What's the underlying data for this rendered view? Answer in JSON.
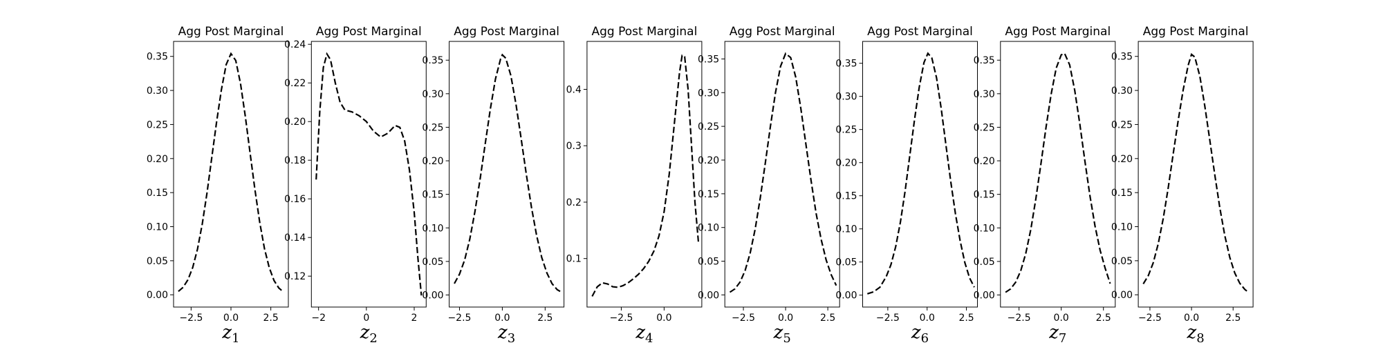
{
  "chart_data": [
    {
      "type": "line",
      "title": "Agg Post Marginal",
      "xlabel": "z",
      "xlabel_sub": "1",
      "xlim": [
        -3.6,
        3.6
      ],
      "ylim": [
        -0.018,
        0.372
      ],
      "xticks": [
        -2.5,
        0.0,
        2.5
      ],
      "xtick_labels": [
        "−2.5",
        "0.0",
        "2.5"
      ],
      "yticks": [
        0.0,
        0.05,
        0.1,
        0.15,
        0.2,
        0.25,
        0.3,
        0.35
      ],
      "ytick_labels": [
        "0.00",
        "0.05",
        "0.10",
        "0.15",
        "0.20",
        "0.25",
        "0.30",
        "0.35"
      ],
      "series": [
        {
          "x": [
            -3.3,
            -3.0,
            -2.7,
            -2.4,
            -2.1,
            -1.8,
            -1.5,
            -1.2,
            -0.9,
            -0.6,
            -0.3,
            0.0,
            0.3,
            0.6,
            0.9,
            1.2,
            1.5,
            1.8,
            2.1,
            2.4,
            2.7,
            3.0,
            3.3
          ],
          "y": [
            0.005,
            0.011,
            0.022,
            0.04,
            0.067,
            0.104,
            0.15,
            0.202,
            0.254,
            0.301,
            0.338,
            0.354,
            0.344,
            0.31,
            0.262,
            0.208,
            0.155,
            0.107,
            0.068,
            0.04,
            0.021,
            0.01,
            0.004
          ]
        }
      ]
    },
    {
      "type": "line",
      "title": "Agg Post Marginal",
      "xlabel": "z",
      "xlabel_sub": "2",
      "xlim": [
        -2.3,
        2.5
      ],
      "ylim": [
        0.104,
        0.2415
      ],
      "xticks": [
        -2,
        0,
        2
      ],
      "xtick_labels": [
        "−2",
        "0",
        "2"
      ],
      "yticks": [
        0.12,
        0.14,
        0.16,
        0.18,
        0.2,
        0.22,
        0.24
      ],
      "ytick_labels": [
        "0.12",
        "0.14",
        "0.16",
        "0.18",
        "0.20",
        "0.22",
        "0.24"
      ],
      "series": [
        {
          "x": [
            -2.1,
            -1.95,
            -1.8,
            -1.65,
            -1.5,
            -1.3,
            -1.1,
            -0.9,
            -0.6,
            -0.3,
            0.0,
            0.3,
            0.6,
            0.9,
            1.2,
            1.4,
            1.6,
            1.8,
            2.0,
            2.15,
            2.3
          ],
          "y": [
            0.17,
            0.205,
            0.228,
            0.235,
            0.232,
            0.22,
            0.21,
            0.206,
            0.205,
            0.203,
            0.2,
            0.195,
            0.192,
            0.194,
            0.198,
            0.197,
            0.19,
            0.175,
            0.153,
            0.13,
            0.11
          ]
        }
      ]
    },
    {
      "type": "line",
      "title": "Agg Post Marginal",
      "xlabel": "z",
      "xlabel_sub": "3",
      "xlim": [
        -3.1,
        3.6
      ],
      "ylim": [
        -0.018,
        0.378
      ],
      "xticks": [
        -2.5,
        0.0,
        2.5
      ],
      "xtick_labels": [
        "−2.5",
        "0.0",
        "2.5"
      ],
      "yticks": [
        0.0,
        0.05,
        0.1,
        0.15,
        0.2,
        0.25,
        0.3,
        0.35
      ],
      "ytick_labels": [
        "0.00",
        "0.05",
        "0.10",
        "0.15",
        "0.20",
        "0.25",
        "0.30",
        "0.35"
      ],
      "series": [
        {
          "x": [
            -2.8,
            -2.5,
            -2.2,
            -1.9,
            -1.6,
            -1.3,
            -1.0,
            -0.7,
            -0.4,
            -0.1,
            0.0,
            0.2,
            0.5,
            0.8,
            1.1,
            1.4,
            1.7,
            2.0,
            2.3,
            2.6,
            2.9,
            3.2,
            3.4
          ],
          "y": [
            0.017,
            0.031,
            0.052,
            0.083,
            0.124,
            0.172,
            0.225,
            0.277,
            0.322,
            0.352,
            0.358,
            0.353,
            0.327,
            0.284,
            0.233,
            0.18,
            0.131,
            0.089,
            0.056,
            0.033,
            0.017,
            0.008,
            0.005
          ]
        }
      ]
    },
    {
      "type": "line",
      "title": "Agg Post Marginal",
      "xlabel": "z",
      "xlabel_sub": "4",
      "xlim": [
        -4.5,
        2.2
      ],
      "ylim": [
        0.014,
        0.485
      ],
      "xticks": [
        -2.5,
        0.0
      ],
      "xtick_labels": [
        "−2.5",
        "0.0"
      ],
      "yticks": [
        0.1,
        0.2,
        0.3,
        0.4
      ],
      "ytick_labels": [
        "0.1",
        "0.2",
        "0.3",
        "0.4"
      ],
      "series": [
        {
          "x": [
            -4.2,
            -3.9,
            -3.6,
            -3.3,
            -3.0,
            -2.7,
            -2.4,
            -2.1,
            -1.8,
            -1.5,
            -1.2,
            -0.9,
            -0.6,
            -0.3,
            0.0,
            0.3,
            0.6,
            0.9,
            1.05,
            1.2,
            1.4,
            1.6,
            1.8,
            2.0
          ],
          "y": [
            0.033,
            0.05,
            0.057,
            0.055,
            0.05,
            0.049,
            0.052,
            0.057,
            0.064,
            0.072,
            0.082,
            0.095,
            0.113,
            0.14,
            0.183,
            0.25,
            0.34,
            0.43,
            0.46,
            0.458,
            0.4,
            0.3,
            0.2,
            0.13
          ]
        }
      ]
    },
    {
      "type": "line",
      "title": "Agg Post Marginal",
      "xlabel": "z",
      "xlabel_sub": "5",
      "xlim": [
        -3.6,
        3.2
      ],
      "ylim": [
        -0.018,
        0.376
      ],
      "xticks": [
        -2.5,
        0.0,
        2.5
      ],
      "xtick_labels": [
        "−2.5",
        "0.0",
        "2.5"
      ],
      "yticks": [
        0.0,
        0.05,
        0.1,
        0.15,
        0.2,
        0.25,
        0.3,
        0.35
      ],
      "ytick_labels": [
        "0.00",
        "0.05",
        "0.10",
        "0.15",
        "0.20",
        "0.25",
        "0.30",
        "0.35"
      ],
      "series": [
        {
          "x": [
            -3.3,
            -3.0,
            -2.7,
            -2.4,
            -2.1,
            -1.8,
            -1.5,
            -1.2,
            -0.9,
            -0.6,
            -0.3,
            0.0,
            0.3,
            0.6,
            0.9,
            1.2,
            1.5,
            1.8,
            2.1,
            2.4,
            2.7,
            3.0
          ],
          "y": [
            0.004,
            0.009,
            0.019,
            0.036,
            0.062,
            0.098,
            0.144,
            0.196,
            0.25,
            0.3,
            0.339,
            0.358,
            0.352,
            0.323,
            0.277,
            0.224,
            0.171,
            0.122,
            0.083,
            0.052,
            0.03,
            0.014
          ]
        }
      ]
    },
    {
      "type": "line",
      "title": "Agg Post Marginal",
      "xlabel": "z",
      "xlabel_sub": "6",
      "xlim": [
        -4.1,
        3.2
      ],
      "ylim": [
        -0.018,
        0.383
      ],
      "xticks": [
        -2.5,
        0.0,
        2.5
      ],
      "xtick_labels": [
        "−2.5",
        "0.0",
        "2.5"
      ],
      "yticks": [
        0.0,
        0.05,
        0.1,
        0.15,
        0.2,
        0.25,
        0.3,
        0.35
      ],
      "ytick_labels": [
        "0.00",
        "0.05",
        "0.10",
        "0.15",
        "0.20",
        "0.25",
        "0.30",
        "0.35"
      ],
      "series": [
        {
          "x": [
            -3.8,
            -3.4,
            -3.0,
            -2.6,
            -2.3,
            -2.0,
            -1.7,
            -1.4,
            -1.1,
            -0.8,
            -0.5,
            -0.2,
            0.05,
            0.3,
            0.6,
            0.9,
            1.2,
            1.5,
            1.8,
            2.1,
            2.4,
            2.7,
            3.0
          ],
          "y": [
            0.002,
            0.005,
            0.012,
            0.028,
            0.046,
            0.073,
            0.11,
            0.157,
            0.211,
            0.265,
            0.314,
            0.351,
            0.365,
            0.358,
            0.328,
            0.281,
            0.226,
            0.172,
            0.123,
            0.082,
            0.049,
            0.026,
            0.012
          ]
        }
      ]
    },
    {
      "type": "line",
      "title": "Agg Post Marginal",
      "xlabel": "z",
      "xlabel_sub": "7",
      "xlim": [
        -3.6,
        3.2
      ],
      "ylim": [
        -0.018,
        0.378
      ],
      "xticks": [
        -2.5,
        0.0,
        2.5
      ],
      "xtick_labels": [
        "−2.5",
        "0.0",
        "2.5"
      ],
      "yticks": [
        0.0,
        0.05,
        0.1,
        0.15,
        0.2,
        0.25,
        0.3,
        0.35
      ],
      "ytick_labels": [
        "0.00",
        "0.05",
        "0.10",
        "0.15",
        "0.20",
        "0.25",
        "0.30",
        "0.35"
      ],
      "series": [
        {
          "x": [
            -3.3,
            -3.0,
            -2.7,
            -2.4,
            -2.1,
            -1.8,
            -1.5,
            -1.2,
            -0.9,
            -0.6,
            -0.3,
            0.0,
            0.2,
            0.5,
            0.8,
            1.1,
            1.4,
            1.7,
            2.0,
            2.3,
            2.6,
            2.9
          ],
          "y": [
            0.004,
            0.009,
            0.019,
            0.036,
            0.062,
            0.098,
            0.144,
            0.196,
            0.25,
            0.299,
            0.338,
            0.358,
            0.36,
            0.343,
            0.305,
            0.255,
            0.2,
            0.148,
            0.103,
            0.067,
            0.04,
            0.017
          ]
        }
      ]
    },
    {
      "type": "line",
      "title": "Agg Post Marginal",
      "xlabel": "z",
      "xlabel_sub": "8",
      "xlim": [
        -3.2,
        3.7
      ],
      "ylim": [
        -0.018,
        0.372
      ],
      "xticks": [
        -2.5,
        0.0,
        2.5
      ],
      "xtick_labels": [
        "−2.5",
        "0.0",
        "2.5"
      ],
      "yticks": [
        0.0,
        0.05,
        0.1,
        0.15,
        0.2,
        0.25,
        0.3,
        0.35
      ],
      "ytick_labels": [
        "0.00",
        "0.05",
        "0.10",
        "0.15",
        "0.20",
        "0.25",
        "0.30",
        "0.35"
      ],
      "series": [
        {
          "x": [
            -2.9,
            -2.6,
            -2.3,
            -2.0,
            -1.7,
            -1.4,
            -1.1,
            -0.8,
            -0.5,
            -0.2,
            0.0,
            0.2,
            0.5,
            0.8,
            1.1,
            1.4,
            1.7,
            2.0,
            2.3,
            2.6,
            2.9,
            3.2,
            3.4
          ],
          "y": [
            0.016,
            0.028,
            0.047,
            0.075,
            0.112,
            0.157,
            0.207,
            0.256,
            0.301,
            0.337,
            0.353,
            0.349,
            0.321,
            0.277,
            0.227,
            0.176,
            0.128,
            0.087,
            0.055,
            0.032,
            0.017,
            0.008,
            0.004
          ]
        }
      ]
    }
  ]
}
